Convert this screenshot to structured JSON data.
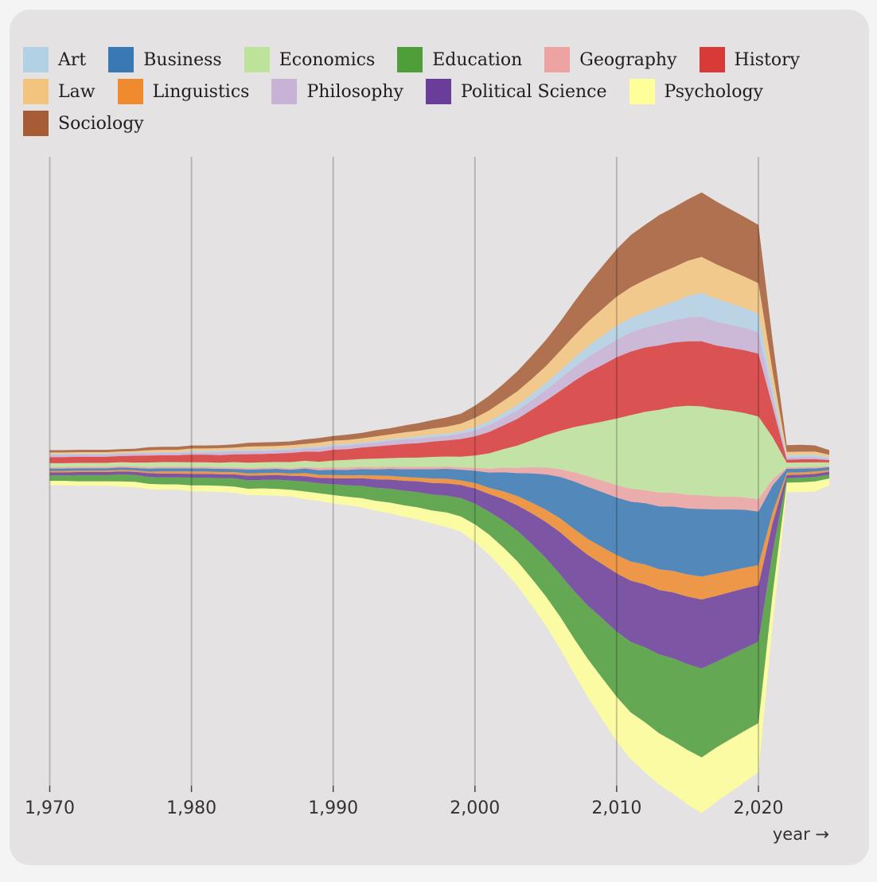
{
  "chart_data": {
    "type": "area",
    "subtype": "streamgraph",
    "title": "",
    "xlabel": "year →",
    "ylabel": "",
    "xlim": [
      1970,
      2025
    ],
    "x_ticks": [
      1970,
      1980,
      1990,
      2000,
      2010,
      2020
    ],
    "x_tick_labels": [
      "1,970",
      "1,980",
      "1,990",
      "2,000",
      "2,010",
      "2,020"
    ],
    "grid": "vertical lines at x ticks",
    "legend_position": "top",
    "x": [
      1970,
      1971,
      1972,
      1973,
      1974,
      1975,
      1976,
      1977,
      1978,
      1979,
      1980,
      1981,
      1982,
      1983,
      1984,
      1985,
      1986,
      1987,
      1988,
      1989,
      1990,
      1991,
      1992,
      1993,
      1994,
      1995,
      1996,
      1997,
      1998,
      1999,
      2000,
      2001,
      2002,
      2003,
      2004,
      2005,
      2006,
      2007,
      2008,
      2009,
      2010,
      2011,
      2012,
      2013,
      2014,
      2015,
      2016,
      2017,
      2018,
      2019,
      2020,
      2021,
      2022,
      2023,
      2024,
      2025
    ],
    "series": [
      {
        "name": "Psychology",
        "color": "#ffff99",
        "values": [
          6,
          6,
          6,
          6,
          6,
          7,
          7,
          7,
          7,
          7,
          8,
          8,
          8,
          8,
          8,
          9,
          9,
          9,
          10,
          10,
          11,
          11,
          12,
          13,
          14,
          15,
          16,
          17,
          19,
          20,
          23,
          26,
          29,
          32,
          35,
          38,
          42,
          46,
          50,
          54,
          58,
          61,
          65,
          67,
          69,
          71,
          73,
          71,
          69,
          67,
          64,
          40,
          12,
          13,
          13,
          9
        ]
      },
      {
        "name": "Education",
        "color": "#4e9e3a",
        "values": [
          7,
          7,
          8,
          8,
          8,
          9,
          9,
          9,
          9,
          9,
          10,
          10,
          10,
          11,
          11,
          11,
          12,
          12,
          13,
          13,
          14,
          15,
          16,
          17,
          18,
          19,
          20,
          21,
          22,
          24,
          27,
          30,
          35,
          40,
          45,
          50,
          55,
          62,
          70,
          78,
          85,
          92,
          98,
          103,
          108,
          112,
          116,
          112,
          110,
          108,
          106,
          55,
          6,
          6,
          6,
          5
        ]
      },
      {
        "name": "Political Science",
        "color": "#6a3d9a",
        "values": [
          4,
          4,
          4,
          4,
          4,
          4,
          4,
          5,
          5,
          5,
          5,
          5,
          5,
          5,
          6,
          6,
          6,
          6,
          7,
          7,
          8,
          9,
          10,
          11,
          12,
          13,
          14,
          15,
          16,
          17,
          20,
          23,
          28,
          33,
          40,
          47,
          55,
          61,
          66,
          71,
          76,
          80,
          82,
          84,
          86,
          88,
          90,
          86,
          82,
          78,
          74,
          38,
          4,
          4,
          4,
          4
        ]
      },
      {
        "name": "Linguistics",
        "color": "#ef8a2e",
        "values": [
          2,
          2,
          2,
          2,
          2,
          2,
          2,
          2,
          3,
          3,
          3,
          3,
          3,
          3,
          3,
          3,
          3,
          3,
          4,
          4,
          4,
          4,
          4,
          5,
          5,
          5,
          5,
          6,
          6,
          6,
          7,
          8,
          10,
          12,
          14,
          16,
          18,
          20,
          21,
          22,
          24,
          25,
          26,
          27,
          28,
          29,
          30,
          29,
          28,
          27,
          26,
          14,
          3,
          3,
          3,
          2
        ]
      },
      {
        "name": "Business",
        "color": "#3a78b3",
        "values": [
          3,
          3,
          3,
          3,
          3,
          3,
          3,
          4,
          4,
          4,
          4,
          4,
          4,
          4,
          5,
          5,
          5,
          5,
          6,
          6,
          7,
          7,
          8,
          8,
          9,
          10,
          11,
          12,
          13,
          14,
          16,
          20,
          25,
          30,
          38,
          46,
          54,
          62,
          68,
          72,
          75,
          78,
          80,
          82,
          84,
          86,
          88,
          84,
          80,
          76,
          70,
          35,
          5,
          5,
          4,
          4
        ]
      },
      {
        "name": "Geography",
        "color": "#eca3a1",
        "values": [
          2,
          2,
          2,
          2,
          2,
          2,
          2,
          2,
          2,
          2,
          2,
          2,
          2,
          2,
          2,
          2,
          2,
          2,
          2,
          3,
          3,
          3,
          3,
          3,
          3,
          3,
          3,
          3,
          3,
          3,
          4,
          5,
          6,
          7,
          8,
          9,
          10,
          12,
          14,
          15,
          16,
          17,
          17,
          18,
          18,
          18,
          18,
          17,
          17,
          16,
          16,
          8,
          2,
          2,
          2,
          1
        ]
      },
      {
        "name": "Economics",
        "color": "#bde39b",
        "values": [
          5,
          5,
          5,
          5,
          5,
          5,
          5,
          6,
          6,
          6,
          6,
          6,
          6,
          7,
          7,
          7,
          7,
          8,
          8,
          8,
          9,
          10,
          10,
          11,
          11,
          12,
          12,
          13,
          13,
          14,
          16,
          20,
          24,
          29,
          35,
          42,
          50,
          59,
          68,
          77,
          87,
          96,
          102,
          108,
          112,
          116,
          116,
          114,
          112,
          110,
          108,
          55,
          6,
          6,
          6,
          5
        ]
      },
      {
        "name": "History",
        "color": "#d83a38",
        "values": [
          8,
          8,
          8,
          8,
          8,
          8,
          9,
          9,
          9,
          9,
          10,
          10,
          10,
          10,
          11,
          11,
          11,
          12,
          12,
          13,
          14,
          14,
          15,
          16,
          17,
          18,
          19,
          20,
          21,
          23,
          25,
          28,
          31,
          35,
          40,
          45,
          52,
          60,
          68,
          74,
          80,
          83,
          84,
          84,
          84,
          84,
          85,
          83,
          82,
          82,
          82,
          40,
          4,
          4,
          4,
          3
        ]
      },
      {
        "name": "Philosophy",
        "color": "#c8b2d5",
        "values": [
          3,
          3,
          3,
          3,
          3,
          3,
          3,
          3,
          3,
          3,
          3,
          3,
          4,
          4,
          4,
          4,
          4,
          4,
          4,
          5,
          5,
          5,
          5,
          5,
          6,
          6,
          6,
          6,
          6,
          7,
          8,
          9,
          10,
          11,
          12,
          14,
          16,
          18,
          20,
          22,
          23,
          25,
          26,
          28,
          29,
          31,
          32,
          31,
          30,
          29,
          28,
          14,
          3,
          3,
          3,
          2
        ]
      },
      {
        "name": "Art",
        "color": "#b3d1e5",
        "values": [
          1,
          1,
          1,
          1,
          1,
          1,
          1,
          1,
          1,
          1,
          2,
          2,
          2,
          2,
          2,
          2,
          2,
          2,
          2,
          2,
          2,
          2,
          2,
          2,
          2,
          2,
          3,
          3,
          3,
          3,
          4,
          5,
          6,
          7,
          8,
          9,
          10,
          12,
          14,
          16,
          18,
          19,
          20,
          22,
          24,
          28,
          31,
          30,
          28,
          26,
          24,
          12,
          3,
          3,
          3,
          2
        ]
      },
      {
        "name": "Law",
        "color": "#f3c47e",
        "values": [
          2,
          2,
          2,
          2,
          2,
          2,
          2,
          3,
          3,
          3,
          3,
          3,
          3,
          3,
          4,
          4,
          4,
          4,
          4,
          5,
          5,
          5,
          5,
          6,
          6,
          7,
          7,
          8,
          9,
          10,
          12,
          14,
          16,
          18,
          20,
          22,
          26,
          29,
          32,
          35,
          38,
          40,
          42,
          44,
          45,
          46,
          47,
          45,
          43,
          41,
          40,
          20,
          4,
          4,
          4,
          3
        ]
      },
      {
        "name": "Sociology",
        "color": "#a65d36",
        "values": [
          3,
          3,
          3,
          3,
          3,
          3,
          3,
          4,
          4,
          4,
          4,
          4,
          4,
          4,
          5,
          5,
          5,
          5,
          6,
          6,
          6,
          7,
          7,
          8,
          8,
          9,
          10,
          11,
          12,
          13,
          16,
          19,
          22,
          26,
          30,
          34,
          38,
          44,
          50,
          56,
          62,
          68,
          72,
          76,
          78,
          80,
          84,
          82,
          80,
          78,
          76,
          40,
          9,
          9,
          8,
          6
        ]
      }
    ]
  },
  "legend": [
    {
      "label": "Art",
      "color": "#b3d1e5"
    },
    {
      "label": "Business",
      "color": "#3a78b3"
    },
    {
      "label": "Economics",
      "color": "#bde39b"
    },
    {
      "label": "Education",
      "color": "#4e9e3a"
    },
    {
      "label": "Geography",
      "color": "#eca3a1"
    },
    {
      "label": "History",
      "color": "#d83a38"
    },
    {
      "label": "Law",
      "color": "#f3c47e"
    },
    {
      "label": "Linguistics",
      "color": "#ef8a2e"
    },
    {
      "label": "Philosophy",
      "color": "#c8b2d5"
    },
    {
      "label": "Political Science",
      "color": "#6a3d9a"
    },
    {
      "label": "Psychology",
      "color": "#ffff99"
    },
    {
      "label": "Sociology",
      "color": "#a65d36"
    }
  ]
}
